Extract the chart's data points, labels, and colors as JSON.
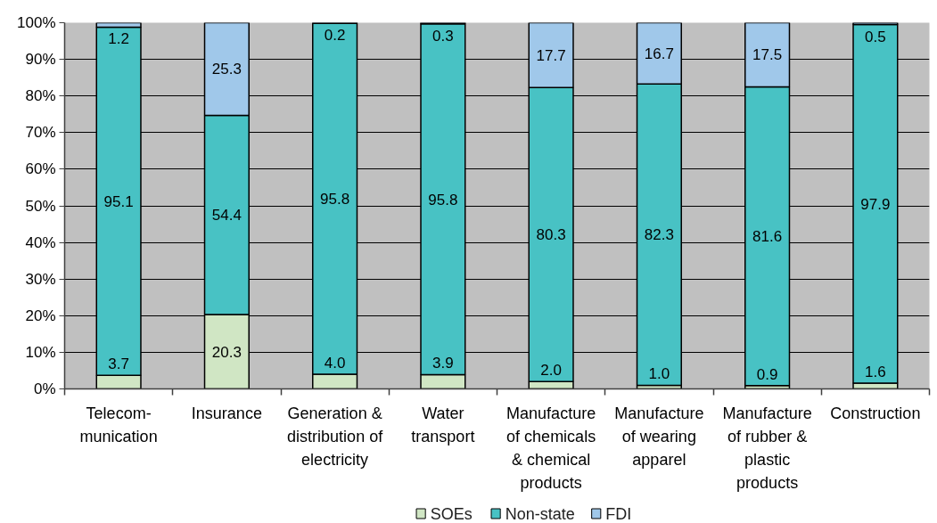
{
  "chart_data": {
    "type": "bar",
    "stacked": true,
    "categories": [
      "Telecom-\nmunication",
      "Insurance",
      "Generation &\ndistribution of\nelectricity",
      "Water\ntransport",
      "Manufacture\nof chemicals\n& chemical\nproducts",
      "Manufacture\nof wearing\napparel",
      "Manufacture\nof rubber &\nplastic\nproducts",
      "Construction"
    ],
    "series": [
      {
        "name": "SOEs",
        "color": "#d0e6c4",
        "values": [
          3.7,
          20.3,
          4.0,
          3.9,
          2.0,
          1.0,
          0.9,
          1.6
        ],
        "value_labels": [
          "3.7",
          "20.3",
          "4.0",
          "3.9",
          "2.0",
          "1.0",
          "0.9",
          "1.6"
        ]
      },
      {
        "name": "Non-state",
        "color": "#48c2c4",
        "values": [
          95.1,
          54.4,
          95.8,
          95.8,
          80.3,
          82.3,
          81.6,
          97.9
        ],
        "value_labels": [
          "95.1",
          "54.4",
          "95.8",
          "95.8",
          "80.3",
          "82.3",
          "81.6",
          "97.9"
        ]
      },
      {
        "name": "FDI",
        "color": "#a0c8ea",
        "values": [
          1.2,
          25.3,
          0.2,
          0.3,
          17.7,
          16.7,
          17.5,
          0.5
        ],
        "value_labels": [
          "1.2",
          "25.3",
          "0.2",
          "0.3",
          "17.7",
          "16.7",
          "17.5",
          "0.5"
        ]
      }
    ],
    "ylim": [
      0,
      100
    ],
    "yticks": [
      {
        "value": 0,
        "label": "0%"
      },
      {
        "value": 10,
        "label": "10%"
      },
      {
        "value": 20,
        "label": "20%"
      },
      {
        "value": 30,
        "label": "30%"
      },
      {
        "value": 40,
        "label": "40%"
      },
      {
        "value": 50,
        "label": "50%"
      },
      {
        "value": 60,
        "label": "60%"
      },
      {
        "value": 70,
        "label": "70%"
      },
      {
        "value": 80,
        "label": "80%"
      },
      {
        "value": 90,
        "label": "90%"
      },
      {
        "value": 100,
        "label": "100%"
      }
    ],
    "grid": "y",
    "legend": "bottom"
  }
}
